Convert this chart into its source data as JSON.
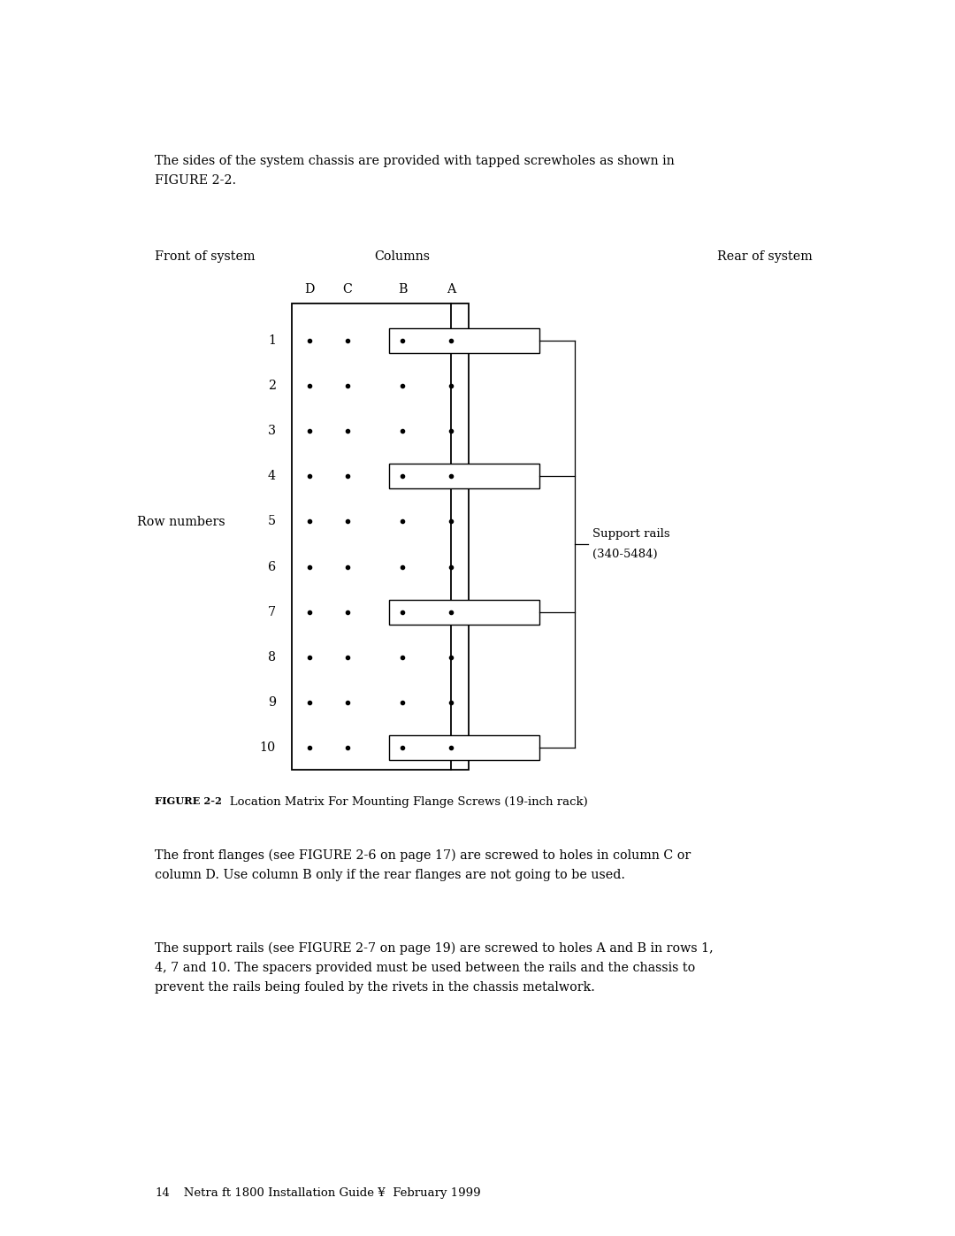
{
  "background_color": "#ffffff",
  "page_width": 10.8,
  "page_height": 13.97,
  "intro_text_line1": "The sides of the system chassis are provided with tapped screwholes as shown in",
  "intro_text_line2": "FIGURE 2-2.",
  "label_front": "Front of system",
  "label_columns": "Columns",
  "label_rear": "Rear of system",
  "col_labels": [
    "D",
    "C",
    "B",
    "A"
  ],
  "row_numbers": [
    1,
    2,
    3,
    4,
    5,
    6,
    7,
    8,
    9,
    10
  ],
  "support_rail_rows": [
    1,
    4,
    7,
    10
  ],
  "row_numbers_label": "Row numbers",
  "support_rails_label_1": "Support rails",
  "support_rails_label_2": "(340-5484)",
  "figure_caption_bold": "FIGURE 2-2",
  "figure_caption_rest": "   Location Matrix For Mounting Flange Screws (19-inch rack)",
  "para1_pre": "The front flanges (see ",
  "para1_fig": "FIGURE 2-6",
  "para1_post": " on page 17) are screwed to holes in column C or",
  "para1_line2": "column D. Use column B only if the rear flanges are not going to be used.",
  "para2_pre": "The support rails (see ",
  "para2_fig": "FIGURE 2-7",
  "para2_post": " on page 19) are screwed to holes A and B in rows 1,",
  "para2_line2": "4, 7 and 10. The spacers provided must be used between the rails and the chassis to",
  "para2_line3": "prevent the rails being fouled by the rivets in the chassis metalwork.",
  "footer_num": "14",
  "footer_text": "   Netra ft 1800 Installation Guide ¥  February 1999",
  "font_family": "serif"
}
